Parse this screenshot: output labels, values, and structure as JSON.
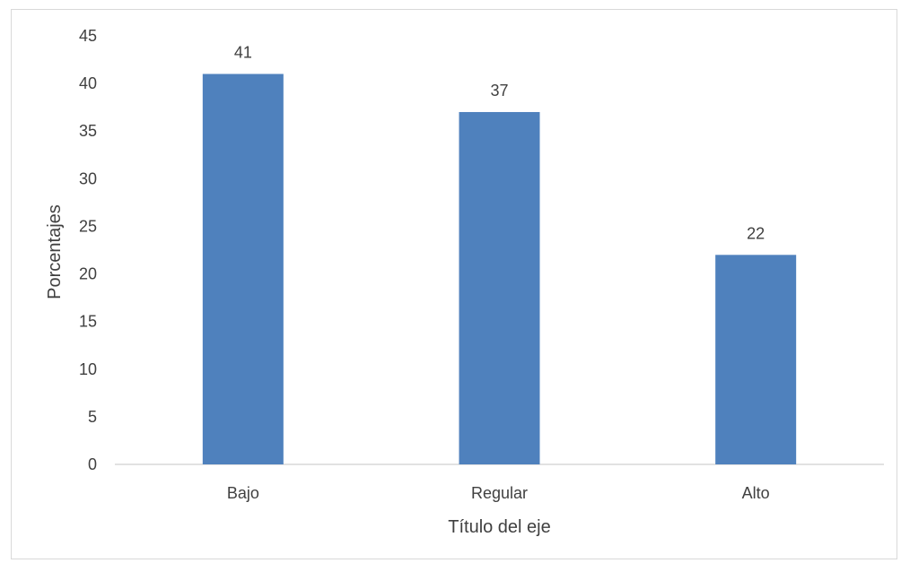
{
  "chart_data": {
    "type": "bar",
    "title": "",
    "xlabel": "Título del eje",
    "ylabel": "Porcentajes",
    "categories": [
      "Bajo",
      "Regular",
      "Alto"
    ],
    "values": [
      41,
      37,
      22
    ],
    "data_labels": [
      "41",
      "37",
      "22"
    ],
    "ylim": [
      0,
      45
    ],
    "yticks": [
      0,
      5,
      10,
      15,
      20,
      25,
      30,
      35,
      40,
      45
    ],
    "grid": false,
    "legend": "none",
    "bar_color": "#4f81bd"
  }
}
